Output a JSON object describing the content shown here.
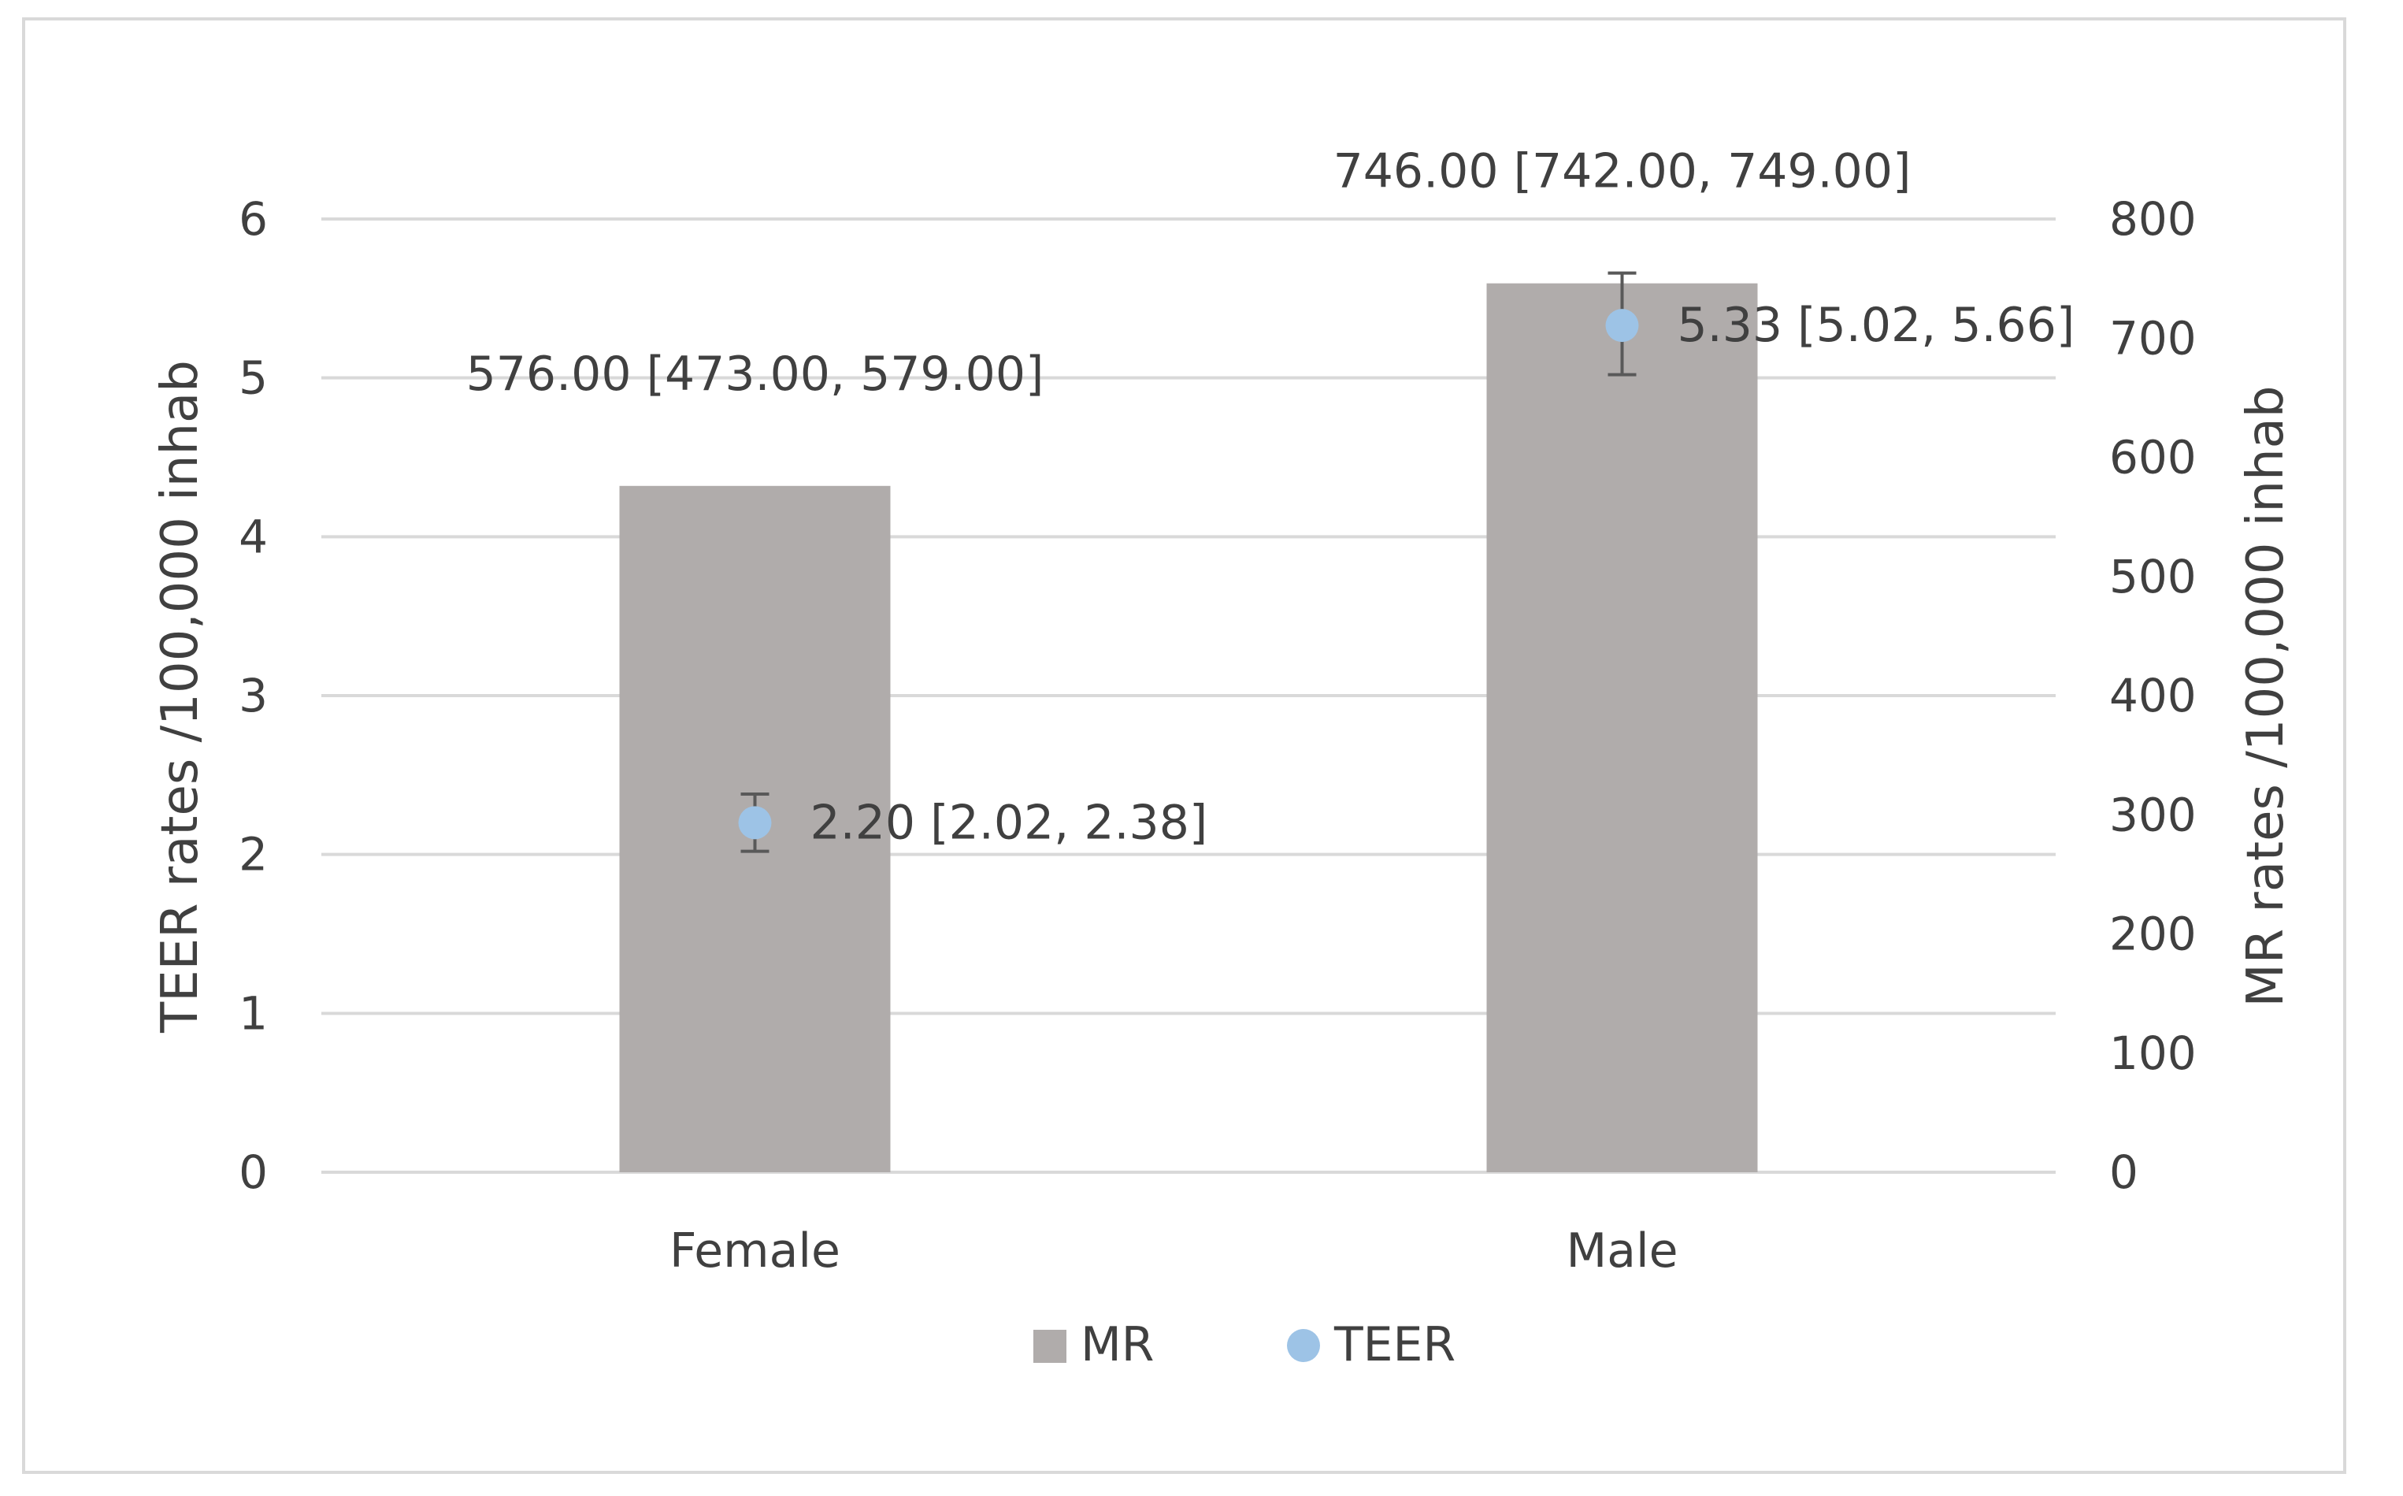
{
  "chart_data": {
    "type": "bar",
    "categories": [
      "Female",
      "Male"
    ],
    "series": [
      {
        "name": "MR",
        "kind": "bar",
        "axis": "right",
        "color": "#b0acab",
        "values": [
          576,
          746
        ],
        "labels": [
          "576.00 [473.00, 579.00]",
          "746.00 [742.00, 749.00]"
        ]
      },
      {
        "name": "TEER",
        "kind": "scatter",
        "axis": "left",
        "color": "#9dc3e6",
        "values": [
          2.2,
          5.33
        ],
        "error_low": [
          2.02,
          5.02
        ],
        "error_high": [
          2.38,
          5.66
        ],
        "labels": [
          "2.20 [2.02, 2.38]",
          "5.33 [5.02, 5.66]"
        ]
      }
    ],
    "y_left": {
      "label": "TEER rates /100,000 inhab",
      "ylim": [
        0,
        6
      ],
      "ticks": [
        "0",
        "1",
        "2",
        "3",
        "4",
        "5",
        "6"
      ]
    },
    "y_right": {
      "label": "MR rates /100,000 inhab",
      "ylim": [
        0,
        800
      ],
      "ticks": [
        "0",
        "100",
        "200",
        "300",
        "400",
        "500",
        "600",
        "700",
        "800"
      ]
    },
    "grid": true,
    "legend": {
      "position": "bottom",
      "entries": [
        "MR",
        "TEER"
      ]
    },
    "colors": {
      "gridline": "#d9d9d9",
      "errorbar": "#595959",
      "text": "#404040"
    }
  }
}
